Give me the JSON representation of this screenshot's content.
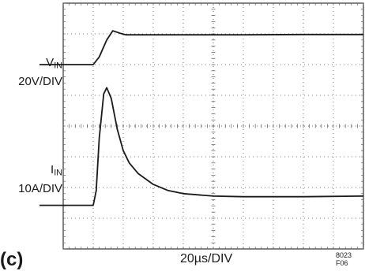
{
  "chart_data": {
    "type": "line",
    "channels": [
      {
        "name": "V",
        "subscript": "IN",
        "scale": "20V/DIV"
      },
      {
        "name": "I",
        "subscript": "IN",
        "scale": "10A/DIV"
      }
    ],
    "xlabel": "20µs/DIV",
    "panel": "(c)",
    "figure_id": "8023 F06",
    "grid": {
      "divisions_x": 10,
      "divisions_y": 8,
      "dotted": true
    },
    "series": [
      {
        "name": "V",
        "unit_x": "div",
        "unit_y": "div",
        "x": [
          0,
          0.5,
          1.0,
          1.2,
          1.45,
          1.65,
          1.9,
          2.1,
          2.4,
          3,
          4,
          6,
          8,
          10
        ],
        "y": [
          6.0,
          6.0,
          6.0,
          6.25,
          6.8,
          7.1,
          7.02,
          6.97,
          6.97,
          6.97,
          6.97,
          6.97,
          6.98,
          6.98
        ]
      },
      {
        "name": "I",
        "unit_x": "div",
        "unit_y": "div",
        "x": [
          0,
          0.5,
          1.0,
          1.1,
          1.2,
          1.35,
          1.45,
          1.6,
          1.8,
          2.0,
          2.2,
          2.5,
          3.0,
          3.5,
          4.0,
          5.0,
          6.0,
          8.0,
          10.0
        ],
        "y": [
          1.42,
          1.42,
          1.42,
          1.9,
          3.6,
          5.05,
          5.25,
          4.9,
          3.9,
          3.2,
          2.8,
          2.45,
          2.1,
          1.9,
          1.8,
          1.72,
          1.7,
          1.7,
          1.72
        ]
      }
    ],
    "xlim": [
      0,
      10
    ],
    "ylim": [
      0,
      8
    ]
  },
  "colors": {
    "trace": "#1a1a1a",
    "grid": "#555555",
    "frame": "#333333"
  }
}
